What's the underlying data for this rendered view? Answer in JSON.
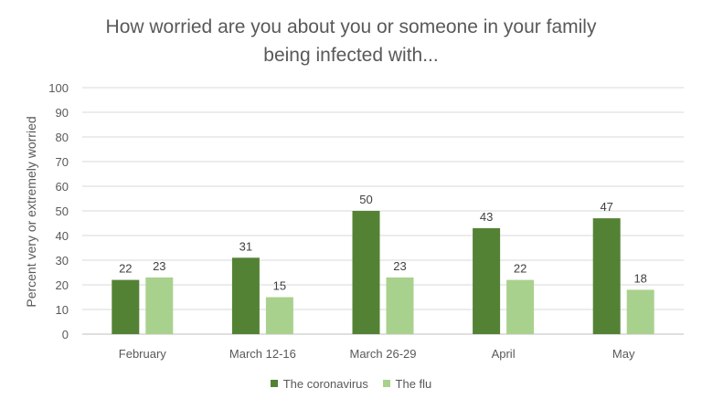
{
  "chart_data": {
    "type": "bar",
    "title_lines": [
      "How worried are you about you or someone in your family",
      "being infected with..."
    ],
    "xlabel": "",
    "ylabel": "Percent very or extremely worried",
    "ylim": [
      0,
      100
    ],
    "yticks": [
      0,
      10,
      20,
      30,
      40,
      50,
      60,
      70,
      80,
      90,
      100
    ],
    "grid": true,
    "legend_position": "bottom",
    "categories": [
      "February",
      "March 12-16",
      "March 26-29",
      "April",
      "May"
    ],
    "series": [
      {
        "name": "The coronavirus",
        "color": "#548235",
        "values": [
          22,
          31,
          50,
          43,
          47
        ]
      },
      {
        "name": "The flu",
        "color": "#a9d18e",
        "values": [
          23,
          15,
          23,
          22,
          18
        ]
      }
    ]
  }
}
